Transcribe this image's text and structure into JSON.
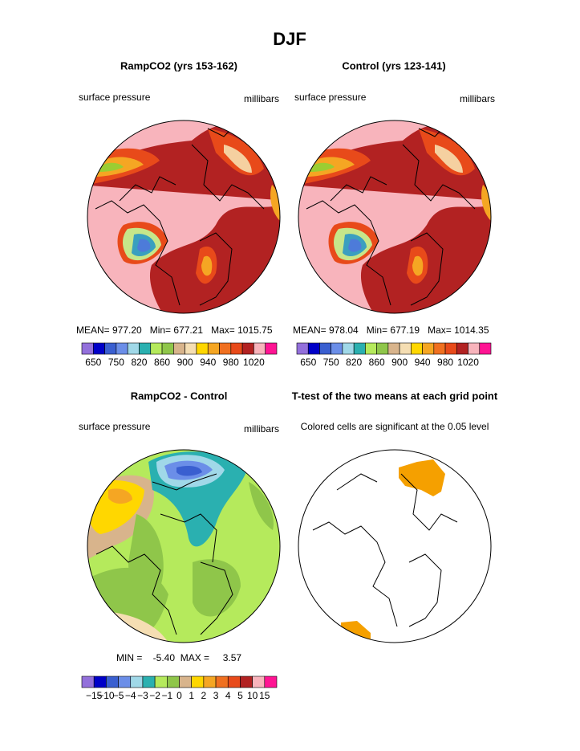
{
  "title": "DJF",
  "panels": [
    {
      "title": "RampCO2 (yrs 153-162)",
      "left_label": "surface pressure",
      "right_label": "millibars",
      "stats": "MEAN= 977.20   Min= 677.21   Max= 1015.75",
      "colorbar_labels": [
        "650",
        "750",
        "820",
        "860",
        "900",
        "940",
        "980",
        "1020"
      ]
    },
    {
      "title": "Control (yrs 123-141)",
      "left_label": "surface pressure",
      "right_label": "millibars",
      "stats": "MEAN= 978.04   Min= 677.19   Max= 1014.35",
      "colorbar_labels": [
        "650",
        "750",
        "820",
        "860",
        "900",
        "940",
        "980",
        "1020"
      ]
    },
    {
      "title": "RampCO2 - Control",
      "left_label": "surface pressure",
      "right_label": "millibars",
      "stats": "MIN =    -5.40  MAX =     3.57",
      "colorbar_labels": [
        "−15",
        "−10",
        "−5",
        "−4",
        "−3",
        "−2",
        "−1",
        "0",
        "1",
        "2",
        "3",
        "4",
        "5",
        "10",
        "15"
      ]
    },
    {
      "title": "T-test of the two means at each grid point",
      "subtitle": "Colored cells are significant at the 0.05 level"
    }
  ]
}
